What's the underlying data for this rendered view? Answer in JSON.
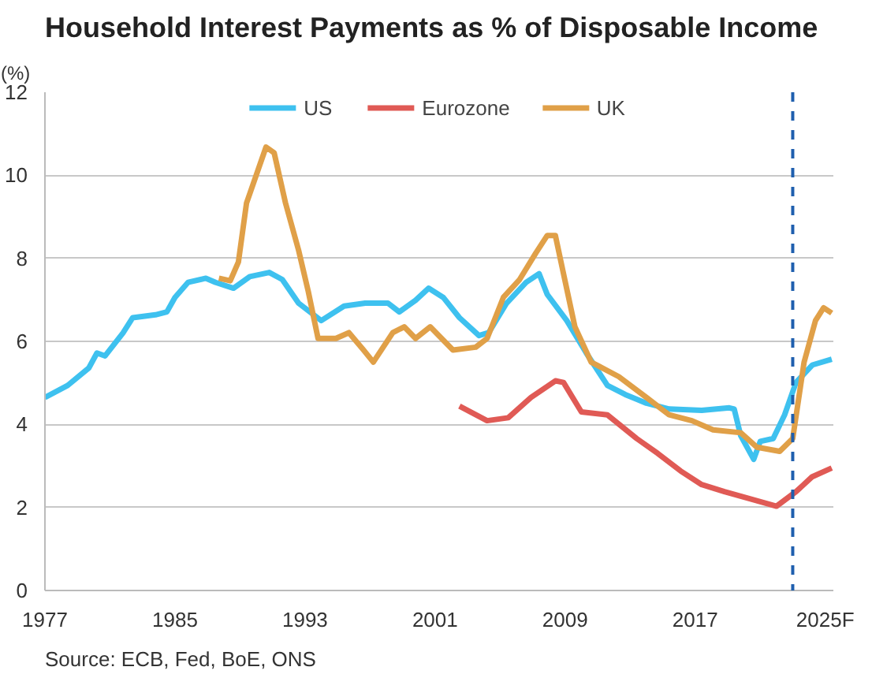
{
  "chart_data": {
    "type": "line",
    "title": "Household Interest Payments as % of Disposable Income",
    "ylabel": "(%)",
    "xlim": [
      1977,
      2025.5
    ],
    "xticks": [
      1977,
      1985,
      1993,
      2001,
      2009,
      2017,
      {
        "value": 2025,
        "label": "2025F"
      }
    ],
    "ylim": [
      0,
      12
    ],
    "yticks": [
      0,
      2,
      4,
      6,
      8,
      10,
      12
    ],
    "grid": "y",
    "legend": "top",
    "series": [
      {
        "name": "US",
        "color": "#3ec1ef",
        "x": [
          1977,
          1978.4,
          1979.7,
          1980.2,
          1980.7,
          1981.8,
          1982.4,
          1983.8,
          1984.5,
          1985,
          1985.8,
          1986.9,
          1987.5,
          1988.6,
          1989.6,
          1990.8,
          1991.6,
          1992.6,
          1994,
          1995.4,
          1996.7,
          1998.1,
          1998.8,
          1999.8,
          2000.6,
          2001.5,
          2002.5,
          2003.7,
          2004.3,
          2005.4,
          2006.6,
          2007.4,
          2007.9,
          2009.1,
          2010.3,
          2011.6,
          2012.7,
          2014,
          2015.4,
          2017.4,
          2019.1,
          2019.4,
          2019.8,
          2020.6,
          2021,
          2021.8,
          2022.5,
          2023.2,
          2024.2,
          2025.4
        ],
        "values": [
          4.65,
          4.94,
          5.36,
          5.72,
          5.65,
          6.2,
          6.57,
          6.64,
          6.71,
          7.06,
          7.42,
          7.52,
          7.42,
          7.28,
          7.56,
          7.66,
          7.49,
          6.92,
          6.5,
          6.85,
          6.92,
          6.92,
          6.71,
          6.99,
          7.28,
          7.06,
          6.57,
          6.14,
          6.21,
          6.92,
          7.42,
          7.63,
          7.13,
          6.5,
          5.72,
          4.94,
          4.72,
          4.51,
          4.37,
          4.34,
          4.4,
          4.37,
          3.73,
          3.16,
          3.59,
          3.66,
          4.23,
          5.01,
          5.43,
          5.57
        ]
      },
      {
        "name": "Eurozone",
        "color": "#e05a55",
        "x": [
          2002.5,
          2004.2,
          2005.5,
          2006.9,
          2008.4,
          2008.9,
          2010,
          2011.6,
          2013.4,
          2014.7,
          2016.1,
          2017.4,
          2018.8,
          2020.1,
          2022,
          2023.2,
          2024.2,
          2025.4
        ],
        "values": [
          4.44,
          4.09,
          4.16,
          4.65,
          5.05,
          5.01,
          4.3,
          4.23,
          3.66,
          3.3,
          2.88,
          2.55,
          2.38,
          2.24,
          2.03,
          2.38,
          2.74,
          2.95
        ]
      },
      {
        "name": "UK",
        "color": "#e0a048",
        "x": [
          1987.7,
          1988.4,
          1988.9,
          1989.4,
          1990.6,
          1991.1,
          1991.8,
          1992.6,
          1993.2,
          1993.8,
          1994.9,
          1995.7,
          1996.6,
          1997.2,
          1998.4,
          1999.1,
          1999.8,
          2000.7,
          2002.1,
          2003.5,
          2004.2,
          2005.2,
          2006.2,
          2007.2,
          2007.9,
          2008.4,
          2008.9,
          2009.6,
          2010.6,
          2012.3,
          2014,
          2015.4,
          2016.8,
          2018.1,
          2019.8,
          2020.8,
          2022.2,
          2023,
          2023.7,
          2024.4,
          2024.9,
          2025.4
        ],
        "values": [
          7.52,
          7.46,
          7.91,
          9.33,
          10.68,
          10.54,
          9.33,
          8.2,
          7.2,
          6.07,
          6.07,
          6.21,
          5.79,
          5.5,
          6.21,
          6.35,
          6.07,
          6.35,
          5.79,
          5.86,
          6.07,
          7.06,
          7.49,
          8.13,
          8.55,
          8.55,
          7.63,
          6.35,
          5.5,
          5.15,
          4.65,
          4.23,
          4.09,
          3.87,
          3.8,
          3.45,
          3.35,
          3.66,
          5.5,
          6.5,
          6.81,
          6.68
        ]
      }
    ],
    "ref_lines": [
      {
        "axis": "x",
        "value": 2023,
        "color": "#1f5fae",
        "line_style": "dashed"
      }
    ],
    "annotations": [
      "Source: ECB, Fed, BoE, ONS"
    ]
  }
}
